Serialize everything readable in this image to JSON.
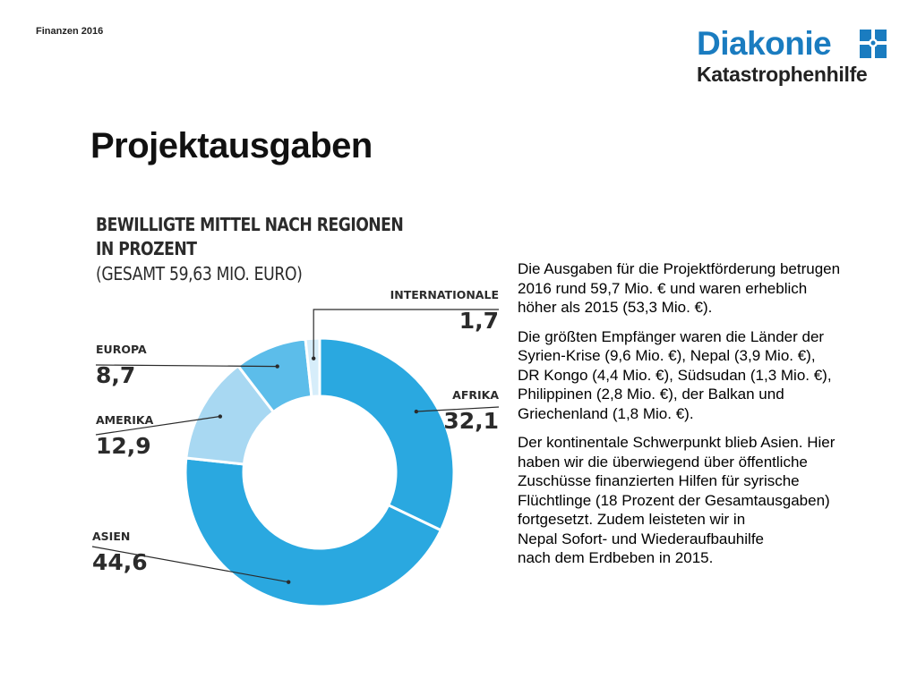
{
  "header": {
    "section_label": "Finanzen 2016",
    "logo_line1": "Diakonie",
    "logo_line2": "Katastrophenhilfe",
    "logo_icon": "diakonie-cross-icon"
  },
  "page_title": "Projektausgaben",
  "chart": {
    "title_line1": "BEWILLIGTE MITTEL NACH REGIONEN",
    "title_line2": "IN PROZENT",
    "subtitle": "(GESAMT 59,63 MIO. EURO)"
  },
  "chart_data": {
    "type": "pie",
    "variant": "donut",
    "title": "BEWILLIGTE MITTEL NACH REGIONEN IN PROZENT",
    "subtitle": "(GESAMT 59,63 MIO. EURO)",
    "unit": "Prozent",
    "categories": [
      "AFRIKA",
      "ASIEN",
      "AMERIKA",
      "EUROPA",
      "INTERNATIONALE"
    ],
    "values": [
      32.1,
      44.6,
      12.9,
      8.7,
      1.7
    ],
    "value_labels": [
      "32,1",
      "44,6",
      "12,9",
      "8,7",
      "1,7"
    ],
    "colors": [
      "#2aa8e0",
      "#2aa8e0",
      "#a8d8f2",
      "#5cbdea",
      "#d6edfa"
    ]
  },
  "body": {
    "paragraphs": [
      "Die Ausgaben für die Projektförderung betrugen\n2016 rund 59,7 Mio. € und waren erheblich\nhöher als 2015 (53,3 Mio. €).",
      "Die größten Empfänger waren die Länder der\nSyrien-Krise (9,6 Mio. €), Nepal (3,9 Mio. €),\nDR Kongo (4,4 Mio. €), Südsudan (1,3 Mio. €),\nPhilippinen (2,8 Mio. €), der Balkan und\nGriechenland (1,8 Mio. €).",
      "Der kontinentale Schwerpunkt blieb Asien. Hier\nhaben wir die überwiegend über öffentliche\nZuschüsse finanzierten Hilfen für syrische\nFlüchtlinge (18 Prozent der Gesamtausgaben)\nfortgesetzt. Zudem leisteten wir in\nNepal Sofort- und Wiederaufbauhilfe\nnach dem Erdbeben in 2015."
    ]
  }
}
